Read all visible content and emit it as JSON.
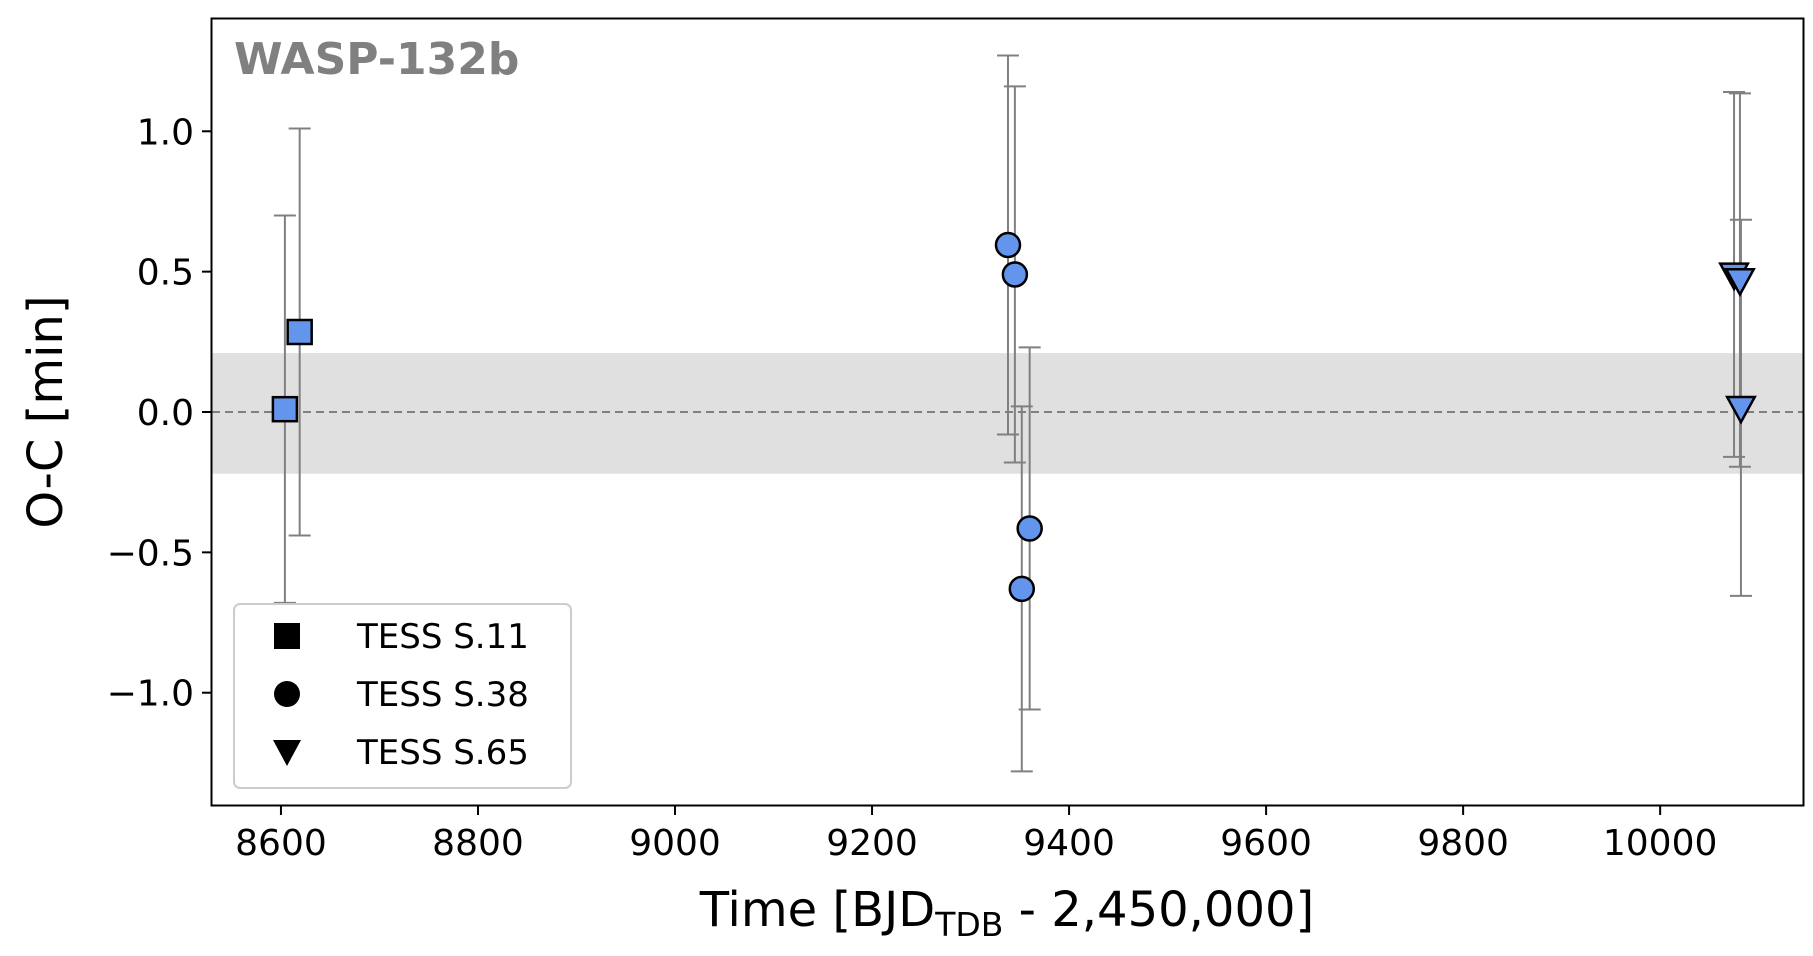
{
  "chart_data": {
    "type": "scatter",
    "title": "WASP-132b",
    "xlabel_main": "Time [BJD",
    "xlabel_sub": "TDB",
    "xlabel_tail": " - 2,450,000]",
    "ylabel": "O-C [min]",
    "xlim": [
      8530,
      10145
    ],
    "ylim": [
      -1.4,
      1.4
    ],
    "xticks": [
      8600,
      8800,
      9000,
      9200,
      9400,
      9600,
      9800,
      10000
    ],
    "xtick_labels": [
      "8600",
      "8800",
      "9000",
      "9200",
      "9400",
      "9600",
      "9800",
      "10000"
    ],
    "yticks": [
      1.0,
      0.5,
      0.0,
      -0.5,
      -1.0
    ],
    "ytick_labels": [
      "1.0",
      "0.5",
      "0.0",
      "−0.5",
      "−1.0"
    ],
    "reference_line": 0.0,
    "uncertainty_band": [
      -0.22,
      0.21
    ],
    "legend_position": "lower-left",
    "colors": {
      "marker_fill": "#6495ED",
      "marker_edge": "#000000",
      "errorbar": "#808080",
      "band": "#e0e0e0",
      "title": "#808080",
      "reference_line": "#808080"
    },
    "series": [
      {
        "name": "TESS S.11",
        "marker": "square",
        "x": [
          8604,
          8619
        ],
        "y": [
          0.01,
          0.285
        ],
        "yerr": [
          0.69,
          0.725
        ]
      },
      {
        "name": "TESS S.38",
        "marker": "circle",
        "x": [
          9338,
          9345,
          9352,
          9360
        ],
        "y": [
          0.595,
          0.49,
          -0.63,
          -0.415
        ],
        "yerr": [
          0.675,
          0.67,
          0.65,
          0.645
        ]
      },
      {
        "name": "TESS S.65",
        "marker": "triangle-down",
        "x": [
          10075,
          10081,
          10082
        ],
        "y": [
          0.49,
          0.47,
          0.015
        ],
        "yerr": [
          0.65,
          0.665,
          0.67
        ]
      }
    ]
  }
}
